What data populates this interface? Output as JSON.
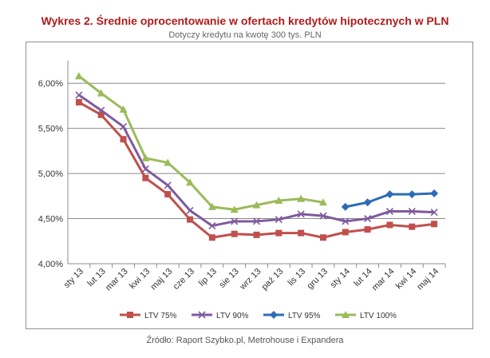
{
  "chart_data": {
    "type": "line",
    "title": "Wykres 2. Średnie oprocentowanie  w ofertach kredytów hipotecznych  w PLN",
    "subtitle": "Dotyczy kredytu na kwotę 300 tys. PLN",
    "source": "Źródło: Raport Szybko.pl, Metrohouse i Expandera",
    "categories": [
      "sty 13",
      "lut 13",
      "mar 13",
      "kwi 13",
      "maj 13",
      "cze 13",
      "lip 13",
      "sie 13",
      "wrz 13",
      "paź 13",
      "lis 13",
      "gru 13",
      "sty 14",
      "lut 14",
      "mar 14",
      "kwi 14",
      "maj 14"
    ],
    "ylim": [
      4.0,
      6.25
    ],
    "yticks": [
      "4,00%",
      "4,50%",
      "5,00%",
      "5,50%",
      "6,00%"
    ],
    "ytick_values": [
      4.0,
      4.5,
      5.0,
      5.5,
      6.0
    ],
    "grid": true,
    "legend_position": "bottom",
    "series": [
      {
        "name": "LTV 75%",
        "color": "#c0504d",
        "marker": "square",
        "values": [
          5.79,
          5.65,
          5.38,
          4.95,
          4.77,
          4.49,
          4.29,
          4.33,
          4.32,
          4.34,
          4.34,
          4.29,
          4.35,
          4.38,
          4.43,
          4.41,
          4.44
        ]
      },
      {
        "name": "LTV 90%",
        "color": "#7f5a9e",
        "marker": "x",
        "values": [
          5.87,
          5.7,
          5.52,
          5.05,
          4.87,
          4.59,
          4.42,
          4.47,
          4.47,
          4.49,
          4.55,
          4.53,
          4.47,
          4.5,
          4.58,
          4.58,
          4.57
        ]
      },
      {
        "name": "LTV 95%",
        "color": "#2e6db5",
        "marker": "diamond",
        "values": [
          null,
          null,
          null,
          null,
          null,
          null,
          null,
          null,
          null,
          null,
          null,
          null,
          4.63,
          4.68,
          4.77,
          4.77,
          4.78
        ]
      },
      {
        "name": "LTV 100%",
        "color": "#9bbb59",
        "marker": "triangle",
        "values": [
          6.08,
          5.89,
          5.71,
          5.17,
          5.12,
          4.9,
          4.63,
          4.6,
          4.65,
          4.7,
          4.72,
          4.68,
          null,
          null,
          null,
          null,
          null
        ]
      }
    ]
  }
}
